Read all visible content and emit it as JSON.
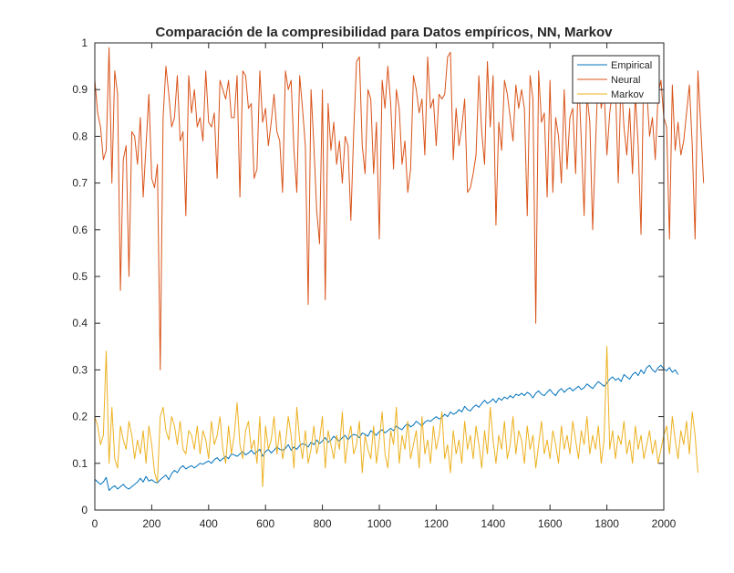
{
  "chart_data": {
    "type": "line",
    "title": "Comparación de la compresibilidad para Datos empíricos, NN, Markov",
    "xlabel": "",
    "ylabel": "",
    "xlim": [
      0,
      2000
    ],
    "ylim": [
      0,
      1
    ],
    "xticks": [
      0,
      200,
      400,
      600,
      800,
      1000,
      1200,
      1400,
      1600,
      1800,
      2000
    ],
    "yticks": [
      0,
      0.1,
      0.2,
      0.3,
      0.4,
      0.5,
      0.6,
      0.7,
      0.8,
      0.9,
      1
    ],
    "grid": false,
    "legend_position": "top-right",
    "x_step": 10,
    "series": [
      {
        "name": "Empirical",
        "color": "#0072BD",
        "values": [
          0.066,
          0.06,
          0.055,
          0.06,
          0.07,
          0.042,
          0.048,
          0.052,
          0.045,
          0.05,
          0.055,
          0.048,
          0.045,
          0.05,
          0.055,
          0.06,
          0.068,
          0.06,
          0.072,
          0.062,
          0.065,
          0.06,
          0.058,
          0.065,
          0.07,
          0.075,
          0.065,
          0.078,
          0.085,
          0.08,
          0.09,
          0.095,
          0.088,
          0.092,
          0.095,
          0.09,
          0.095,
          0.1,
          0.098,
          0.102,
          0.105,
          0.1,
          0.108,
          0.112,
          0.105,
          0.11,
          0.115,
          0.11,
          0.12,
          0.118,
          0.115,
          0.12,
          0.125,
          0.118,
          0.122,
          0.128,
          0.12,
          0.125,
          0.13,
          0.115,
          0.125,
          0.13,
          0.122,
          0.128,
          0.135,
          0.13,
          0.128,
          0.132,
          0.14,
          0.128,
          0.135,
          0.13,
          0.138,
          0.142,
          0.14,
          0.135,
          0.145,
          0.14,
          0.15,
          0.142,
          0.148,
          0.155,
          0.145,
          0.15,
          0.158,
          0.152,
          0.148,
          0.155,
          0.16,
          0.15,
          0.158,
          0.162,
          0.16,
          0.155,
          0.165,
          0.162,
          0.158,
          0.17,
          0.165,
          0.16,
          0.168,
          0.172,
          0.165,
          0.17,
          0.175,
          0.17,
          0.18,
          0.175,
          0.172,
          0.18,
          0.185,
          0.178,
          0.182,
          0.19,
          0.185,
          0.18,
          0.188,
          0.192,
          0.19,
          0.195,
          0.2,
          0.195,
          0.198,
          0.205,
          0.2,
          0.21,
          0.205,
          0.208,
          0.215,
          0.21,
          0.222,
          0.215,
          0.212,
          0.22,
          0.225,
          0.22,
          0.228,
          0.235,
          0.228,
          0.232,
          0.238,
          0.23,
          0.24,
          0.235,
          0.242,
          0.238,
          0.245,
          0.24,
          0.248,
          0.245,
          0.25,
          0.245,
          0.252,
          0.248,
          0.24,
          0.25,
          0.255,
          0.248,
          0.245,
          0.252,
          0.258,
          0.25,
          0.245,
          0.255,
          0.26,
          0.252,
          0.258,
          0.262,
          0.255,
          0.26,
          0.265,
          0.258,
          0.262,
          0.27,
          0.265,
          0.26,
          0.268,
          0.275,
          0.27,
          0.265,
          0.272,
          0.28,
          0.285,
          0.278,
          0.282,
          0.275,
          0.29,
          0.285,
          0.28,
          0.29,
          0.295,
          0.288,
          0.3,
          0.292,
          0.305,
          0.31,
          0.3,
          0.295,
          0.305,
          0.31,
          0.302,
          0.298,
          0.305,
          0.295,
          0.3,
          0.29
        ]
      },
      {
        "name": "Neural",
        "color": "#D95319",
        "values": [
          0.92,
          0.85,
          0.82,
          0.75,
          0.77,
          0.99,
          0.7,
          0.94,
          0.89,
          0.47,
          0.75,
          0.78,
          0.5,
          0.81,
          0.8,
          0.74,
          0.84,
          0.67,
          0.78,
          0.89,
          0.71,
          0.69,
          0.74,
          0.3,
          0.84,
          0.95,
          0.89,
          0.82,
          0.84,
          0.93,
          0.79,
          0.81,
          0.63,
          0.93,
          0.85,
          0.9,
          0.82,
          0.84,
          0.79,
          0.94,
          0.83,
          0.82,
          0.85,
          0.71,
          0.92,
          0.9,
          0.88,
          0.92,
          0.84,
          0.84,
          0.93,
          0.67,
          0.94,
          0.93,
          0.86,
          0.87,
          0.71,
          0.73,
          0.94,
          0.83,
          0.86,
          0.78,
          0.83,
          0.89,
          0.81,
          0.79,
          0.68,
          0.94,
          0.9,
          0.92,
          0.77,
          0.68,
          0.93,
          0.86,
          0.78,
          0.44,
          0.9,
          0.78,
          0.64,
          0.57,
          0.9,
          0.45,
          0.87,
          0.77,
          0.83,
          0.74,
          0.79,
          0.7,
          0.8,
          0.78,
          0.62,
          0.81,
          0.96,
          0.97,
          0.78,
          0.72,
          0.9,
          0.88,
          0.72,
          0.83,
          0.58,
          0.92,
          0.86,
          0.95,
          0.87,
          0.73,
          0.9,
          0.86,
          0.74,
          0.79,
          0.68,
          0.73,
          0.93,
          0.9,
          0.85,
          0.88,
          0.76,
          0.97,
          0.86,
          0.88,
          0.78,
          0.89,
          0.88,
          0.89,
          0.97,
          0.98,
          0.75,
          0.86,
          0.78,
          0.82,
          0.88,
          0.68,
          0.69,
          0.72,
          0.76,
          0.93,
          0.81,
          0.74,
          0.96,
          0.82,
          0.93,
          0.61,
          0.83,
          0.77,
          0.92,
          0.89,
          0.84,
          0.79,
          0.91,
          0.86,
          0.9,
          0.86,
          0.63,
          0.93,
          0.88,
          0.4,
          0.94,
          0.83,
          0.85,
          0.67,
          0.92,
          0.68,
          0.84,
          0.8,
          0.7,
          0.9,
          0.73,
          0.84,
          0.86,
          0.72,
          0.94,
          0.79,
          0.63,
          0.89,
          0.83,
          0.6,
          0.78,
          0.95,
          0.86,
          0.9,
          0.76,
          0.85,
          0.9,
          0.91,
          0.7,
          0.93,
          0.82,
          0.76,
          0.86,
          0.72,
          0.89,
          0.78,
          0.59,
          0.96,
          0.9,
          0.8,
          0.84,
          0.75,
          0.89,
          0.92,
          0.84,
          0.82,
          0.58,
          0.91,
          0.77,
          0.83,
          0.76,
          0.79,
          0.85,
          0.91,
          0.78,
          0.58,
          0.94,
          0.82,
          0.7
        ]
      },
      {
        "name": "Markov",
        "color": "#EDB120",
        "values": [
          0.2,
          0.18,
          0.14,
          0.16,
          0.34,
          0.1,
          0.22,
          0.11,
          0.09,
          0.18,
          0.15,
          0.13,
          0.19,
          0.16,
          0.11,
          0.15,
          0.12,
          0.17,
          0.1,
          0.18,
          0.14,
          0.08,
          0.06,
          0.2,
          0.22,
          0.17,
          0.15,
          0.2,
          0.18,
          0.14,
          0.19,
          0.13,
          0.12,
          0.17,
          0.16,
          0.13,
          0.18,
          0.12,
          0.17,
          0.15,
          0.11,
          0.19,
          0.14,
          0.16,
          0.2,
          0.13,
          0.1,
          0.18,
          0.12,
          0.16,
          0.23,
          0.14,
          0.11,
          0.17,
          0.19,
          0.13,
          0.15,
          0.1,
          0.2,
          0.05,
          0.18,
          0.13,
          0.15,
          0.2,
          0.12,
          0.17,
          0.11,
          0.14,
          0.2,
          0.16,
          0.09,
          0.22,
          0.15,
          0.11,
          0.17,
          0.1,
          0.13,
          0.18,
          0.12,
          0.15,
          0.2,
          0.09,
          0.17,
          0.14,
          0.11,
          0.16,
          0.13,
          0.21,
          0.1,
          0.15,
          0.18,
          0.12,
          0.14,
          0.19,
          0.08,
          0.16,
          0.13,
          0.11,
          0.18,
          0.1,
          0.15,
          0.21,
          0.12,
          0.09,
          0.17,
          0.14,
          0.22,
          0.1,
          0.16,
          0.13,
          0.19,
          0.11,
          0.14,
          0.17,
          0.09,
          0.2,
          0.12,
          0.15,
          0.1,
          0.18,
          0.13,
          0.16,
          0.21,
          0.11,
          0.14,
          0.08,
          0.17,
          0.12,
          0.15,
          0.1,
          0.19,
          0.13,
          0.16,
          0.11,
          0.18,
          0.14,
          0.09,
          0.17,
          0.12,
          0.22,
          0.15,
          0.1,
          0.16,
          0.13,
          0.19,
          0.11,
          0.14,
          0.2,
          0.12,
          0.17,
          0.15,
          0.1,
          0.18,
          0.13,
          0.16,
          0.09,
          0.14,
          0.19,
          0.12,
          0.15,
          0.11,
          0.17,
          0.14,
          0.1,
          0.18,
          0.13,
          0.16,
          0.12,
          0.19,
          0.15,
          0.11,
          0.17,
          0.14,
          0.2,
          0.12,
          0.16,
          0.13,
          0.18,
          0.1,
          0.15,
          0.35,
          0.13,
          0.17,
          0.11,
          0.16,
          0.14,
          0.19,
          0.12,
          0.15,
          0.1,
          0.18,
          0.13,
          0.16,
          0.11,
          0.14,
          0.17,
          0.12,
          0.15,
          0.1,
          0.13,
          0.16,
          0.18,
          0.12,
          0.2,
          0.15,
          0.11,
          0.17,
          0.14,
          0.19,
          0.12,
          0.21,
          0.16,
          0.08
        ]
      }
    ]
  }
}
